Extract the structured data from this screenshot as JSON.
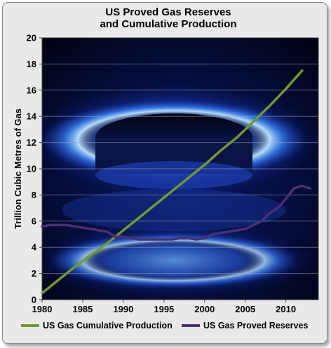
{
  "chart_data": {
    "type": "line",
    "title_lines": [
      "US Proved Gas Reserves",
      "and Cumulative Production"
    ],
    "xlabel": "",
    "ylabel": "Trillion Cubic Metres of Gas",
    "xlim": [
      1980,
      2014
    ],
    "ylim": [
      0,
      20
    ],
    "x_ticks": [
      1980,
      1985,
      1990,
      1995,
      2000,
      2005,
      2010
    ],
    "y_ticks": [
      0,
      2,
      4,
      6,
      8,
      10,
      12,
      14,
      16,
      18,
      20
    ],
    "grid": true,
    "legend_position": "bottom",
    "series": [
      {
        "name": "US Gas Cumulative Production",
        "color": "#6f9a2e",
        "x": [
          1980,
          1982,
          1984,
          1986,
          1988,
          1990,
          1992,
          1994,
          1996,
          1998,
          2000,
          2002,
          2004,
          2006,
          2008,
          2010,
          2012
        ],
        "values": [
          0.5,
          1.5,
          2.5,
          3.4,
          4.3,
          5.3,
          6.3,
          7.3,
          8.3,
          9.3,
          10.3,
          11.4,
          12.4,
          13.6,
          14.8,
          16.1,
          17.5
        ]
      },
      {
        "name": "US Gas Proved Reserves",
        "color": "#4a2f73",
        "x": [
          1980,
          1981,
          1982,
          1983,
          1984,
          1985,
          1986,
          1987,
          1988,
          1989,
          1990,
          1991,
          1992,
          1993,
          1994,
          1995,
          1996,
          1997,
          1998,
          1999,
          2000,
          2001,
          2002,
          2003,
          2004,
          2005,
          2006,
          2007,
          2008,
          2009,
          2010,
          2011,
          2012,
          2013
        ],
        "values": [
          5.6,
          5.7,
          5.7,
          5.7,
          5.6,
          5.5,
          5.4,
          5.3,
          5.2,
          4.8,
          4.8,
          4.7,
          4.6,
          4.6,
          4.6,
          4.6,
          4.6,
          4.7,
          4.7,
          4.6,
          4.7,
          5.0,
          5.1,
          5.2,
          5.3,
          5.4,
          5.7,
          6.0,
          6.6,
          7.0,
          7.7,
          8.5,
          8.7,
          8.5
        ]
      }
    ]
  }
}
